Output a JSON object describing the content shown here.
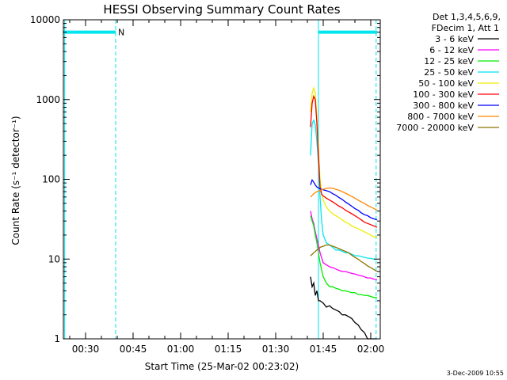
{
  "chart_data": {
    "type": "line",
    "title": "HESSI Observing Summary Count Rates",
    "xlabel": "Start Time (25-Mar-02 00:23:02)",
    "ylabel": "Count Rate (s⁻¹ detector⁻¹)",
    "y_scale": "log",
    "ylim": [
      1,
      10000
    ],
    "xlim_minutes": [
      23,
      123
    ],
    "x_ticks": [
      {
        "m": 30,
        "label": "00:30"
      },
      {
        "m": 45,
        "label": "00:45"
      },
      {
        "m": 60,
        "label": "01:00"
      },
      {
        "m": 75,
        "label": "01:15"
      },
      {
        "m": 90,
        "label": "01:30"
      },
      {
        "m": 105,
        "label": "01:45"
      },
      {
        "m": 120,
        "label": "02:00"
      }
    ],
    "y_ticks": [
      {
        "v": 1,
        "label": "1"
      },
      {
        "v": 10,
        "label": "10"
      },
      {
        "v": 100,
        "label": "100"
      },
      {
        "v": 1000,
        "label": "1000"
      },
      {
        "v": 10000,
        "label": "10000"
      }
    ],
    "legend_header": [
      "Det 1,3,4,5,6,9,",
      "FDecim 1, Att 1"
    ],
    "legend_position": "right",
    "flag_label": "N",
    "flag_color": "#00e5ee",
    "flag_level": 7000,
    "flag_segments": [
      [
        23,
        39.5
      ],
      [
        103.5,
        122
      ]
    ],
    "vertical_markers": [
      {
        "m": 23.4,
        "style": "solid"
      },
      {
        "m": 39.5,
        "style": "dashed"
      },
      {
        "m": 103.5,
        "style": "solid"
      },
      {
        "m": 121.7,
        "style": "dashed"
      }
    ],
    "series": [
      {
        "name": "3 - 6 keV",
        "color": "#000000",
        "x": [
          101,
          101.5,
          102,
          102.5,
          103,
          103.5,
          104,
          105,
          106,
          107,
          108,
          109,
          110,
          111,
          112,
          113,
          114,
          115,
          116,
          117,
          118,
          119,
          120,
          121,
          122
        ],
        "y": [
          6,
          4.5,
          5,
          3.5,
          4,
          3,
          3,
          2.8,
          2.5,
          2.6,
          2.4,
          2.3,
          2.2,
          2,
          2,
          1.9,
          1.8,
          1.6,
          1.5,
          1.3,
          1.2,
          1,
          1,
          1,
          1
        ]
      },
      {
        "name": "6 - 12 keV",
        "color": "#ff00ff",
        "x": [
          101,
          101.5,
          102,
          102.5,
          103,
          103.5,
          104,
          105,
          106,
          107,
          108,
          109,
          110,
          111,
          112,
          113,
          114,
          115,
          116,
          117,
          118,
          119,
          120,
          121,
          122
        ],
        "y": [
          40,
          32,
          28,
          22,
          18,
          15,
          12,
          9,
          8.5,
          8,
          7.8,
          7.5,
          7.2,
          7,
          7,
          6.8,
          6.6,
          6.5,
          6.3,
          6.2,
          6,
          5.8,
          5.8,
          5.6,
          5.5
        ]
      },
      {
        "name": "12 - 25 keV",
        "color": "#00ee00",
        "x": [
          101,
          101.5,
          102,
          102.5,
          103,
          103.5,
          104,
          105,
          106,
          107,
          108,
          109,
          110,
          111,
          112,
          113,
          114,
          115,
          116,
          117,
          118,
          119,
          120,
          121,
          122
        ],
        "y": [
          35,
          30,
          26,
          20,
          16,
          12,
          9,
          6,
          5,
          4.5,
          4.5,
          4.3,
          4.2,
          4,
          4,
          3.9,
          3.8,
          3.8,
          3.6,
          3.6,
          3.5,
          3.5,
          3.4,
          3.3,
          3.3
        ]
      },
      {
        "name": "25 - 50 keV",
        "color": "#00e5ee",
        "x": [
          101,
          101.5,
          102,
          102.5,
          103,
          103.5,
          104,
          104.5,
          105,
          106,
          107,
          108,
          109,
          110,
          111,
          112,
          113,
          114,
          115,
          116,
          117,
          118,
          119,
          120,
          121,
          122
        ],
        "y": [
          200,
          500,
          550,
          480,
          300,
          160,
          60,
          30,
          20,
          16,
          15,
          14,
          13,
          13,
          12.5,
          12,
          12,
          11.5,
          11,
          11,
          10.8,
          10.5,
          10.3,
          10.2,
          10,
          10
        ]
      },
      {
        "name": "50 - 100 keV",
        "color": "#eeee00",
        "x": [
          101,
          101.5,
          102,
          102.5,
          103,
          103.5,
          104,
          104.5,
          105,
          106,
          107,
          108,
          109,
          110,
          111,
          112,
          113,
          114,
          115,
          116,
          117,
          118,
          119,
          120,
          121,
          122
        ],
        "y": [
          700,
          1200,
          1400,
          1200,
          600,
          250,
          100,
          65,
          55,
          45,
          40,
          37,
          35,
          33,
          31,
          29,
          28,
          26,
          25,
          24,
          23,
          22,
          21,
          20,
          19,
          19
        ]
      },
      {
        "name": "100 - 300 keV",
        "color": "#ff0000",
        "x": [
          101,
          101.5,
          102,
          102.5,
          103,
          103.5,
          104,
          104.5,
          105,
          106,
          107,
          108,
          109,
          110,
          111,
          112,
          113,
          114,
          115,
          116,
          117,
          118,
          119,
          120,
          121,
          122
        ],
        "y": [
          450,
          900,
          1100,
          1000,
          500,
          200,
          80,
          65,
          62,
          58,
          55,
          52,
          49,
          46,
          44,
          41,
          39,
          37,
          35,
          33,
          31,
          29,
          28,
          27,
          26,
          25
        ]
      },
      {
        "name": "300 - 800 keV",
        "color": "#0000ff",
        "x": [
          101,
          101.5,
          102,
          102.5,
          103,
          103.5,
          104,
          104.5,
          105,
          106,
          107,
          108,
          109,
          110,
          111,
          112,
          113,
          114,
          115,
          116,
          117,
          118,
          119,
          120,
          121,
          122
        ],
        "y": [
          85,
          98,
          92,
          85,
          80,
          78,
          76,
          75,
          74,
          72,
          70,
          66,
          63,
          59,
          56,
          52,
          49,
          46,
          43,
          41,
          38,
          36,
          35,
          33,
          32,
          31
        ]
      },
      {
        "name": "800 - 7000 keV",
        "color": "#ff8800",
        "x": [
          101,
          102,
          103,
          104,
          105,
          106,
          107,
          108,
          109,
          110,
          111,
          112,
          113,
          114,
          115,
          116,
          117,
          118,
          119,
          120,
          121,
          122
        ],
        "y": [
          60,
          66,
          70,
          73,
          75,
          77,
          78,
          77,
          75,
          73,
          70,
          67,
          64,
          61,
          58,
          55,
          52,
          50,
          47,
          45,
          43,
          41
        ]
      },
      {
        "name": "7000 - 20000 keV",
        "color": "#8b7500",
        "x": [
          101,
          102,
          103,
          104,
          105,
          106,
          107,
          108,
          109,
          110,
          111,
          112,
          113,
          114,
          115,
          116,
          117,
          118,
          119,
          120,
          121,
          122
        ],
        "y": [
          11,
          12,
          13,
          14,
          14.5,
          15,
          15,
          14.5,
          14,
          13.5,
          13,
          12.5,
          12,
          11.2,
          10.5,
          10,
          9.3,
          8.8,
          8.2,
          7.8,
          7.4,
          7
        ]
      }
    ]
  },
  "footer": {
    "timestamp": "3-Dec-2009 10:55"
  }
}
